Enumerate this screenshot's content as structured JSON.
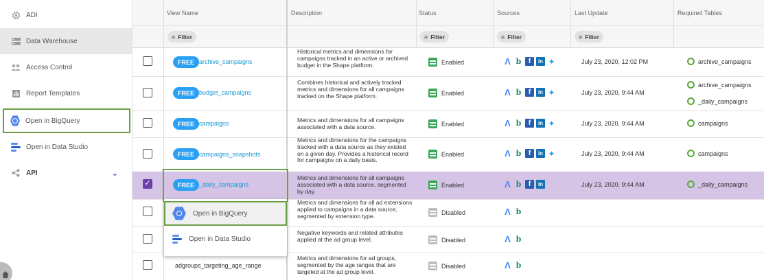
{
  "sidebar": {
    "items": [
      {
        "label": "ADI"
      },
      {
        "label": "Data Warehouse"
      },
      {
        "label": "Access Control"
      },
      {
        "label": "Report Templates"
      },
      {
        "label": "Open in BigQuery"
      },
      {
        "label": "Open in Data Studio"
      },
      {
        "label": "API"
      }
    ]
  },
  "table": {
    "headers": {
      "view_name": "View Name",
      "description": "Description",
      "status": "Status",
      "sources": "Sources",
      "last_update": "Last Update",
      "required_tables": "Required Tables"
    },
    "filter_label": "Filter",
    "free_badge": "FREE",
    "rows": [
      {
        "name": "archive_campaigns",
        "desc": "Historical metrics and dimensions for campaigns tracked in an active or archived budget in the Shape platform.",
        "status": "Enabled",
        "last_update": "July 23, 2020, 12:02 PM",
        "tables": [
          "archive_campaigns"
        ]
      },
      {
        "name": "budget_campaigns",
        "desc": "Combines historical and actively tracked metrics and dimensions for all campaigns tracked on the Shape platform.",
        "status": "Enabled",
        "last_update": "July 23, 2020, 9:44 AM",
        "tables": [
          "archive_campaigns",
          "_daily_campaigns"
        ]
      },
      {
        "name": "campaigns",
        "desc": "Metrics and dimensions for all campaigns associated with a data source.",
        "status": "Enabled",
        "last_update": "July 23, 2020, 9:44 AM",
        "tables": [
          "campaigns"
        ]
      },
      {
        "name": "campaigns_snapshots",
        "desc": "Metrics and dimensions for the campaigns tracked with a data source as they existed on a given day. Provides a historical record for campaigns on a daily basis.",
        "status": "Enabled",
        "last_update": "July 23, 2020, 9:44 AM",
        "tables": [
          "campaigns"
        ]
      },
      {
        "name": "_daily_campaigns",
        "desc": "Metrics and dimensions for all campaigns associated with a data source, segmented by day.",
        "status": "Enabled",
        "last_update": "July 23, 2020, 9:44 AM",
        "tables": [
          "_daily_campaigns"
        ]
      },
      {
        "name": "",
        "desc": "Metrics and dimensions for all ad extensions applied to campaigns in a data source, segmented by extension type.",
        "status": "Disabled",
        "last_update": "",
        "tables": []
      },
      {
        "name": "",
        "desc": "Negative keywords and related attributes applied at the ad group level.",
        "status": "Disabled",
        "last_update": "",
        "tables": []
      },
      {
        "name": "adgroups_targeting_age_range",
        "desc": "Metrics and dimensions for ad groups, segmented by the age ranges that are targeted at the ad group level.",
        "status": "Disabled",
        "last_update": "",
        "tables": []
      }
    ]
  },
  "popup": {
    "items": [
      {
        "label": "Open in BigQuery"
      },
      {
        "label": "Open in Data Studio"
      }
    ]
  },
  "colors": {
    "accent_green": "#6a9f45",
    "selected_row": "#d5c4e6",
    "free_badge": "#2aa0f5",
    "enabled": "#3aa757",
    "disabled": "#bdbdbd"
  },
  "icons": {
    "adi": "gear-icon",
    "data_warehouse": "database-icon",
    "access_control": "people-icon",
    "report_templates": "bar-chart-icon",
    "bigquery": "bigquery-icon",
    "data_studio": "data-studio-icon",
    "api": "share-icon",
    "sources": [
      "google-ads-icon",
      "bing-icon",
      "facebook-icon",
      "linkedin-icon",
      "twitter-icon"
    ]
  }
}
